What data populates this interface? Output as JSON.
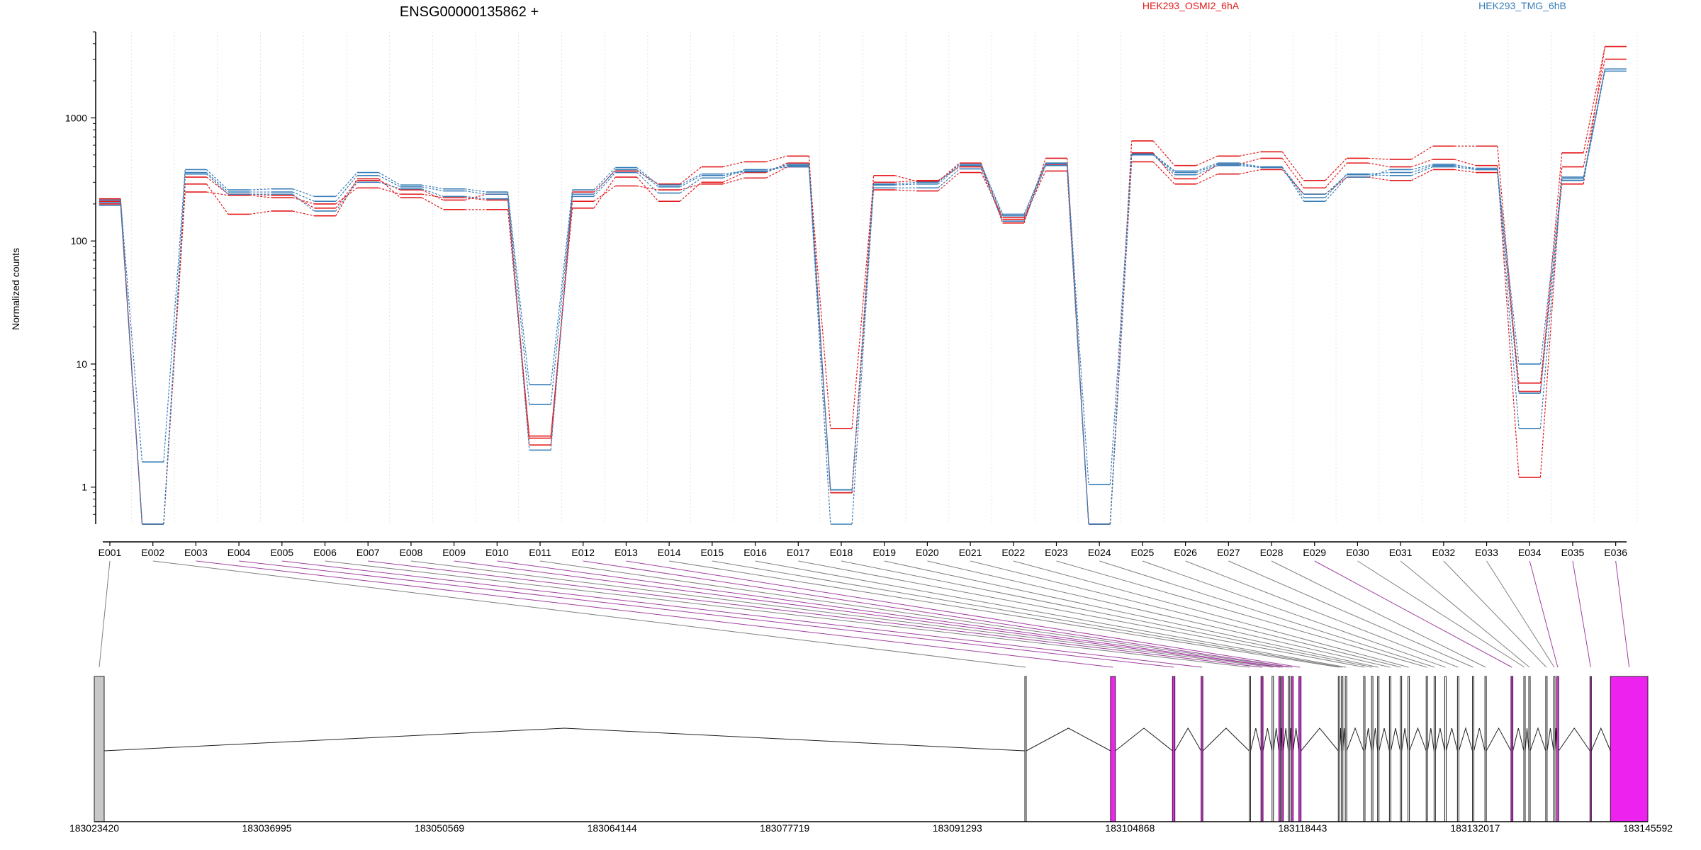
{
  "chart_data": {
    "type": "line",
    "title": "ENSG00000135862 +",
    "ylabel": "Normalized counts",
    "yscale": "log",
    "ylim": [
      0.5,
      5000
    ],
    "yticks": [
      {
        "value": 1,
        "label": "1"
      },
      {
        "value": 10,
        "label": "10"
      },
      {
        "value": 100,
        "label": "100"
      },
      {
        "value": 1000,
        "label": "1000"
      }
    ],
    "grid": "vertical dotted lines at exon boundaries",
    "legend": [
      "HEK293_OSMI2_6hA",
      "HEK293_TMG_6hB"
    ],
    "colors": {
      "OSMI2": "#e41a1c",
      "TMG": "#377eb8",
      "gray_exon": "#c8c8c8",
      "magenta_exon": "#ee22ee",
      "connector_purple": "#a040a0",
      "connector_gray": "#808080"
    },
    "categories": [
      "E001",
      "E002",
      "E003",
      "E004",
      "E005",
      "E006",
      "E007",
      "E008",
      "E009",
      "E010",
      "E011",
      "E012",
      "E013",
      "E014",
      "E015",
      "E016",
      "E017",
      "E018",
      "E019",
      "E020",
      "E021",
      "E022",
      "E023",
      "E024",
      "E025",
      "E026",
      "E027",
      "E028",
      "E029",
      "E030",
      "E031",
      "E032",
      "E033",
      "E034",
      "E035",
      "E036"
    ],
    "series": [
      {
        "name": "HEK293_OSMI2_6hA",
        "group": "OSMI2",
        "values": [
          210,
          0.5,
          250,
          235,
          225,
          200,
          270,
          240,
          225,
          215,
          2.5,
          210,
          280,
          260,
          290,
          325,
          400,
          0.9,
          260,
          255,
          360,
          155,
          370,
          0.5,
          440,
          290,
          350,
          380,
          240,
          330,
          310,
          380,
          360,
          7,
          290,
          3800
        ]
      },
      {
        "name": "HEK293_OSMI2_6hA",
        "group": "OSMI2",
        "values": [
          220,
          0.5,
          290,
          165,
          175,
          160,
          320,
          225,
          180,
          180,
          2.6,
          185,
          330,
          210,
          300,
          360,
          430,
          3,
          300,
          310,
          400,
          150,
          420,
          0.5,
          520,
          320,
          420,
          470,
          270,
          430,
          400,
          460,
          410,
          1.2,
          400,
          3000
        ]
      },
      {
        "name": "HEK293_OSMI2_6hA",
        "group": "OSMI2",
        "values": [
          200,
          0.5,
          330,
          240,
          235,
          185,
          310,
          260,
          215,
          240,
          2.2,
          250,
          370,
          290,
          400,
          440,
          490,
          0.9,
          340,
          305,
          430,
          140,
          470,
          0.5,
          650,
          410,
          490,
          530,
          310,
          470,
          460,
          590,
          590,
          6,
          520,
          3800
        ]
      },
      {
        "name": "HEK293_TMG_6hB",
        "group": "TMG",
        "values": [
          215,
          1.6,
          380,
          260,
          265,
          230,
          360,
          285,
          265,
          250,
          6.8,
          260,
          395,
          285,
          350,
          370,
          420,
          0.95,
          290,
          300,
          420,
          165,
          430,
          1.05,
          510,
          370,
          430,
          400,
          210,
          330,
          380,
          420,
          380,
          3,
          330,
          2500
        ]
      },
      {
        "name": "HEK293_TMG_6hB",
        "group": "TMG",
        "values": [
          205,
          0.5,
          360,
          250,
          250,
          210,
          340,
          275,
          255,
          240,
          4.7,
          240,
          380,
          275,
          340,
          365,
          410,
          0.95,
          285,
          290,
          410,
          160,
          425,
          0.5,
          505,
          360,
          420,
          395,
          225,
          350,
          360,
          410,
          390,
          5.8,
          310,
          2400
        ]
      },
      {
        "name": "HEK293_TMG_6hB",
        "group": "TMG",
        "values": [
          195,
          0.5,
          350,
          240,
          240,
          175,
          300,
          265,
          230,
          220,
          2,
          230,
          360,
          245,
          325,
          380,
          400,
          0.5,
          270,
          270,
          385,
          145,
          410,
          0.5,
          500,
          345,
          410,
          395,
          240,
          345,
          340,
          400,
          380,
          10,
          320,
          2500
        ]
      }
    ],
    "genomic_axis": {
      "ticks": [
        "183023420",
        "183036995",
        "183050569",
        "183064144",
        "183077719",
        "183091293",
        "183104868",
        "183118443",
        "183132017",
        "183145592"
      ],
      "range": [
        183023420,
        183145592
      ],
      "exons": [
        {
          "id": "E001",
          "start": 183023420,
          "end": 183024200,
          "color": "gray"
        },
        {
          "id": "E002",
          "start": 183096600,
          "end": 183096650,
          "color": "white"
        },
        {
          "id": "E003",
          "start": 183103340,
          "end": 183103720,
          "color": "magenta"
        },
        {
          "id": "E004",
          "start": 183108210,
          "end": 183108400,
          "color": "magenta"
        },
        {
          "id": "E005",
          "start": 183110460,
          "end": 183110600,
          "color": "magenta"
        },
        {
          "id": "E006",
          "start": 183114240,
          "end": 183114330,
          "color": "white"
        },
        {
          "id": "E007",
          "start": 183115170,
          "end": 183115330,
          "color": "magenta"
        },
        {
          "id": "E008",
          "start": 183116040,
          "end": 183116120,
          "color": "white"
        },
        {
          "id": "E009",
          "start": 183116580,
          "end": 183116710,
          "color": "magenta"
        },
        {
          "id": "E010",
          "start": 183116810,
          "end": 183116900,
          "color": "magenta"
        },
        {
          "id": "E011",
          "start": 183117320,
          "end": 183117400,
          "color": "white"
        },
        {
          "id": "E012",
          "start": 183117560,
          "end": 183117700,
          "color": "magenta"
        },
        {
          "id": "E013",
          "start": 183118150,
          "end": 183118320,
          "color": "magenta"
        },
        {
          "id": "E014",
          "start": 183121250,
          "end": 183121330,
          "color": "white"
        },
        {
          "id": "E015",
          "start": 183121500,
          "end": 183121600,
          "color": "white"
        },
        {
          "id": "E016",
          "start": 183121800,
          "end": 183121900,
          "color": "white"
        },
        {
          "id": "E017",
          "start": 183123240,
          "end": 183123330,
          "color": "white"
        },
        {
          "id": "E018",
          "start": 183123860,
          "end": 183123920,
          "color": "white"
        },
        {
          "id": "E019",
          "start": 183124340,
          "end": 183124420,
          "color": "white"
        },
        {
          "id": "E020",
          "start": 183125270,
          "end": 183125350,
          "color": "white"
        },
        {
          "id": "E021",
          "start": 183126120,
          "end": 183126200,
          "color": "white"
        },
        {
          "id": "E022",
          "start": 183126730,
          "end": 183126830,
          "color": "white"
        },
        {
          "id": "E023",
          "start": 183128160,
          "end": 183128250,
          "color": "white"
        },
        {
          "id": "E024",
          "start": 183128780,
          "end": 183128840,
          "color": "white"
        },
        {
          "id": "E025",
          "start": 183129620,
          "end": 183129700,
          "color": "white"
        },
        {
          "id": "E026",
          "start": 183130620,
          "end": 183130700,
          "color": "white"
        },
        {
          "id": "E027",
          "start": 183131800,
          "end": 183131880,
          "color": "white"
        },
        {
          "id": "E028",
          "start": 183132780,
          "end": 183132860,
          "color": "white"
        },
        {
          "id": "E029",
          "start": 183134830,
          "end": 183134980,
          "color": "magenta"
        },
        {
          "id": "E030",
          "start": 183135840,
          "end": 183135920,
          "color": "white"
        },
        {
          "id": "E031",
          "start": 183136230,
          "end": 183136310,
          "color": "white"
        },
        {
          "id": "E032",
          "start": 183137560,
          "end": 183137640,
          "color": "white"
        },
        {
          "id": "E033",
          "start": 183138180,
          "end": 183138260,
          "color": "white"
        },
        {
          "id": "E034",
          "start": 183138430,
          "end": 183138580,
          "color": "magenta"
        },
        {
          "id": "E035",
          "start": 183141040,
          "end": 183141120,
          "color": "magenta"
        },
        {
          "id": "E036",
          "start": 183142650,
          "end": 183145592,
          "color": "magenta"
        }
      ]
    }
  }
}
